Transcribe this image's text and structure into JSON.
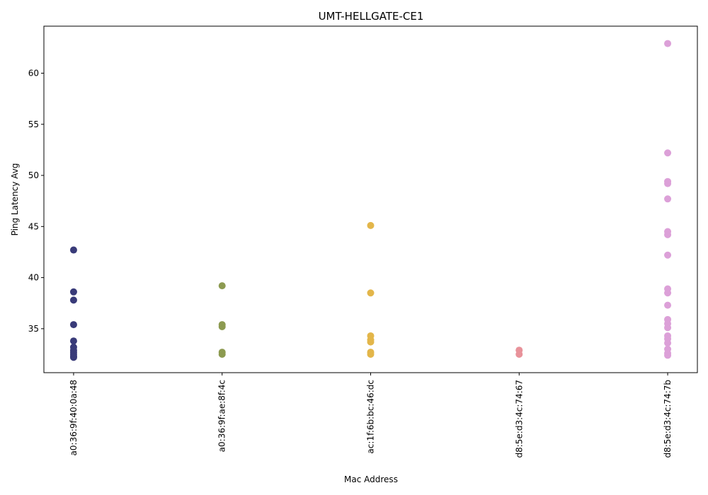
{
  "chart_data": {
    "type": "scatter",
    "title": "UMT-HELLGATE-CE1",
    "x_label": "Mac Address",
    "y_label": "Ping Latency Avg",
    "categories": [
      "a0:36:9f:40:0a:48",
      "a0:36:9f:ae:8f:4c",
      "ac:1f:6b:bc:46:dc",
      "d8:5e:d3:4c:74:67",
      "d8:5e:d3:4c:74:7b"
    ],
    "colors": [
      "#393b79",
      "#8c9a50",
      "#e3b64a",
      "#e8929a",
      "#dca0d8"
    ],
    "values": [
      [
        42.7,
        38.6,
        37.8,
        35.4,
        33.8,
        33.2,
        32.9,
        32.7,
        32.5,
        32.3,
        32.2
      ],
      [
        39.2,
        35.4,
        35.2,
        32.7,
        32.5
      ],
      [
        45.1,
        38.5,
        34.3,
        33.9,
        33.7,
        32.7,
        32.5
      ],
      [
        32.9,
        32.5
      ],
      [
        62.9,
        52.2,
        49.4,
        49.2,
        47.7,
        44.5,
        44.2,
        42.2,
        38.9,
        38.5,
        37.3,
        35.9,
        35.5,
        35.1,
        34.3,
        34.0,
        33.6,
        33.0,
        32.6,
        32.4
      ]
    ],
    "ylim": [
      30.7,
      64.6
    ],
    "yticks": [
      35,
      40,
      45,
      50,
      55,
      60
    ]
  }
}
